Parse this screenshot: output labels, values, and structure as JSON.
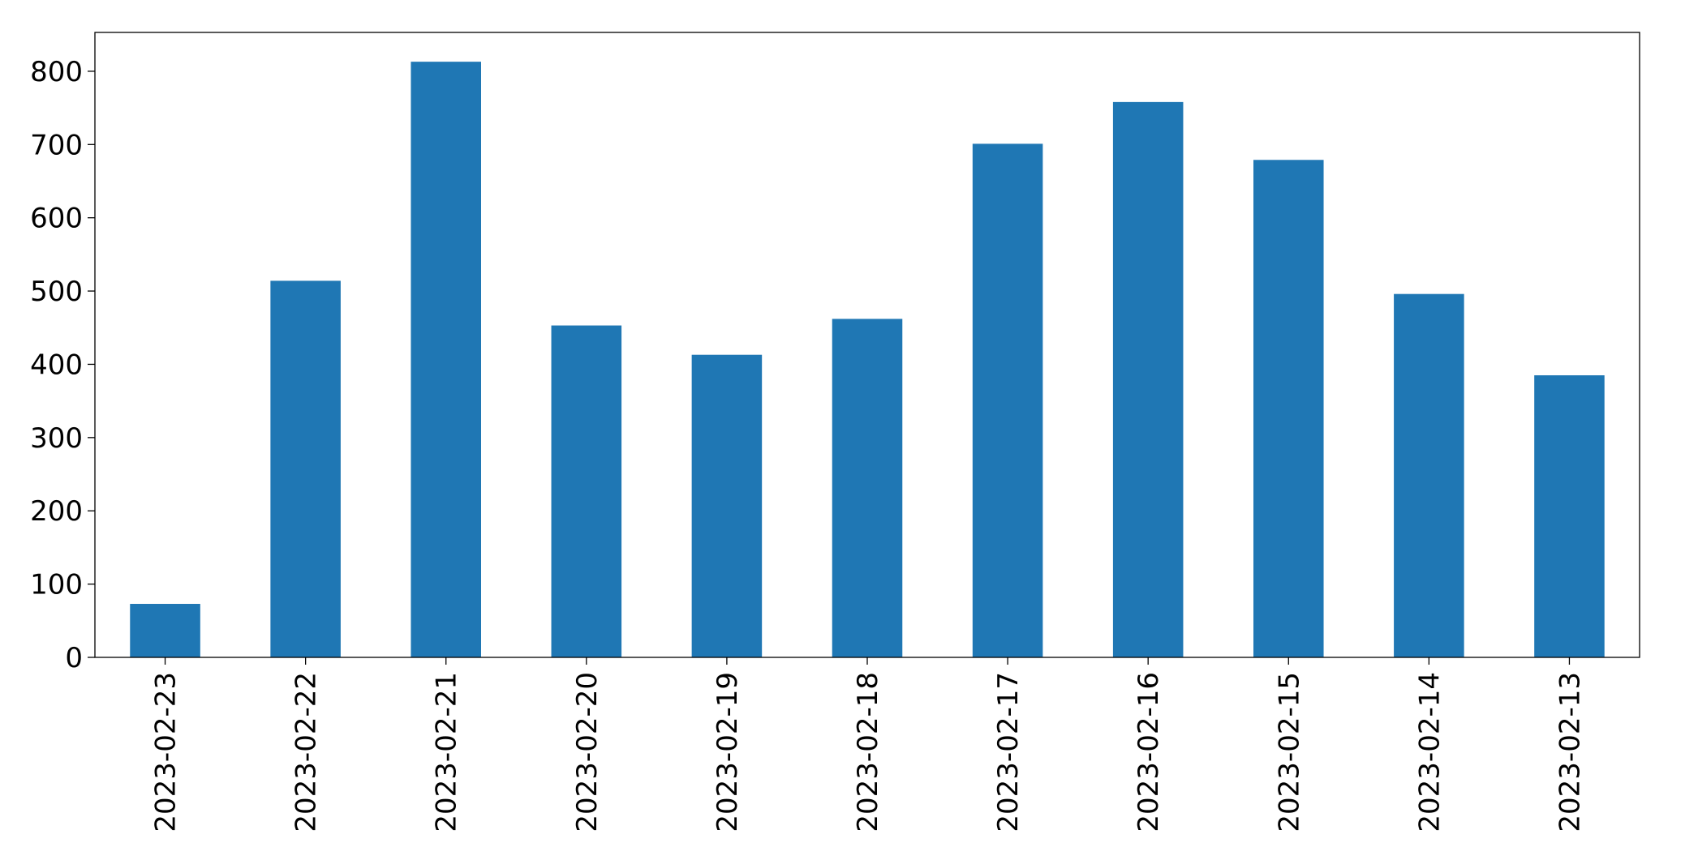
{
  "chart_data": {
    "type": "bar",
    "categories": [
      "2023-02-23",
      "2023-02-22",
      "2023-02-21",
      "2023-02-20",
      "2023-02-19",
      "2023-02-18",
      "2023-02-17",
      "2023-02-16",
      "2023-02-15",
      "2023-02-14",
      "2023-02-13"
    ],
    "values": [
      73,
      514,
      813,
      453,
      413,
      462,
      701,
      758,
      679,
      496,
      385
    ],
    "color": "#1f77b4",
    "ylim": [
      0,
      853
    ],
    "yticks": [
      0,
      100,
      200,
      300,
      400,
      500,
      600,
      700,
      800
    ],
    "grid": false
  }
}
